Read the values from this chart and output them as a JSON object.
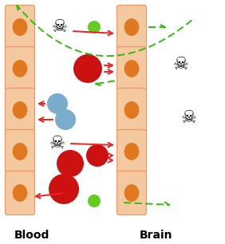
{
  "bg_color": "#ffffff",
  "cell_wall_color": "#f5c9a0",
  "cell_wall_border": "#e8a070",
  "cell_oval_color": "#e07820",
  "red_circle_color": "#cc1111",
  "blue_circle_color": "#7aadcc",
  "green_circle_color": "#66cc22",
  "label_blood": "Blood",
  "label_brain": "Brain",
  "label_fontsize": 10,
  "skull_fontsize": 16
}
